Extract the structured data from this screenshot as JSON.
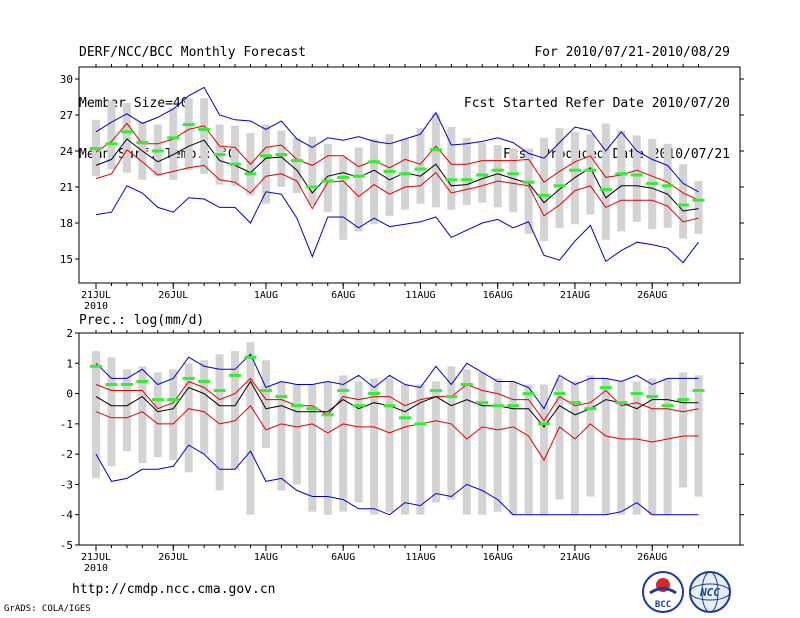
{
  "header": {
    "left_lines": [
      "DERF/NCC/BCC Monthly Forecast",
      "Member Size=40",
      "Mean Surf. Temp.: °C"
    ],
    "right_lines": [
      "For 2010/07/21-2010/08/29",
      "Fcst Started Refer Date 2010/07/20",
      "Fcst Produced Date 2010/07/21"
    ]
  },
  "footer": {
    "url": "http://cmdp.ncc.cma.gov.cn",
    "credit": "GrADS: COLA/IGES"
  },
  "logos": {
    "bcc": "BCC",
    "ncc": "NCC"
  },
  "chart_data": [
    {
      "type": "box-ensemble",
      "title": "Mean Surf. Temp.: °C",
      "ylim": [
        13,
        31
      ],
      "yticks": [
        15,
        18,
        21,
        24,
        27,
        30
      ],
      "xlabel": "",
      "ylabel": "",
      "xticks": [
        {
          "day": 0,
          "label": "21JUL"
        },
        {
          "day": 5,
          "label": "26JUL"
        },
        {
          "day": 11,
          "label": "1AUG"
        },
        {
          "day": 16,
          "label": "6AUG"
        },
        {
          "day": 21,
          "label": "11AUG"
        },
        {
          "day": 26,
          "label": "16AUG"
        },
        {
          "day": 31,
          "label": "21AUG"
        },
        {
          "day": 36,
          "label": "26AUG"
        }
      ],
      "year_label": "2010",
      "series": {
        "box_low": [
          21.9,
          22.5,
          22.2,
          21.6,
          21.9,
          21.6,
          22.4,
          22.1,
          21.2,
          21.1,
          20.3,
          19.6,
          21.0,
          20.5,
          19.5,
          18.9,
          16.6,
          17.3,
          17.9,
          18.6,
          19.1,
          19.6,
          19.3,
          19.1,
          19.5,
          19.7,
          19.3,
          18.9,
          17.1,
          16.5,
          17.6,
          17.9,
          18.7,
          16.6,
          17.3,
          18.1,
          17.5,
          17.6,
          16.7,
          17.1
        ],
        "box_high": [
          26.6,
          28.2,
          28.0,
          26.4,
          26.2,
          27.6,
          28.4,
          28.4,
          26.2,
          26.1,
          25.5,
          26.2,
          25.7,
          25.1,
          25.2,
          24.6,
          23.5,
          24.3,
          25.0,
          25.4,
          25.0,
          25.9,
          27.1,
          26.0,
          25.1,
          24.7,
          24.5,
          24.2,
          24.2,
          25.1,
          25.9,
          25.6,
          25.4,
          26.3,
          25.7,
          25.3,
          25.0,
          24.6,
          22.9,
          21.5
        ],
        "max": [
          25.6,
          26.4,
          27.1,
          26.3,
          26.8,
          27.5,
          28.6,
          29.3,
          27.0,
          26.6,
          26.5,
          25.8,
          26.5,
          25.0,
          24.3,
          25.1,
          24.9,
          25.2,
          24.8,
          24.6,
          25.0,
          25.4,
          27.2,
          24.5,
          24.6,
          24.8,
          25.1,
          24.7,
          23.8,
          23.4,
          24.7,
          26.0,
          25.7,
          24.0,
          25.6,
          24.0,
          23.3,
          22.8,
          21.3,
          20.6
        ],
        "min": [
          18.7,
          18.9,
          21.1,
          20.5,
          19.3,
          18.9,
          20.1,
          20.0,
          19.3,
          19.3,
          18.0,
          20.6,
          20.4,
          18.4,
          15.2,
          18.5,
          18.5,
          17.6,
          18.4,
          17.7,
          17.9,
          18.1,
          18.5,
          16.8,
          17.4,
          18.0,
          18.3,
          17.6,
          18.1,
          15.3,
          14.9,
          16.5,
          17.8,
          14.8,
          15.7,
          16.4,
          16.2,
          15.9,
          14.7,
          16.4
        ],
        "p90": [
          23.9,
          24.8,
          26.3,
          24.6,
          24.6,
          25.0,
          25.8,
          26.1,
          24.4,
          24.3,
          22.9,
          24.3,
          24.5,
          23.3,
          22.8,
          23.6,
          23.6,
          22.7,
          23.2,
          22.6,
          23.3,
          22.9,
          24.4,
          22.9,
          22.9,
          23.2,
          23.2,
          23.2,
          23.3,
          21.4,
          22.3,
          23.1,
          23.6,
          21.8,
          22.0,
          22.4,
          21.9,
          21.4,
          20.5,
          19.9
        ],
        "p10": [
          21.7,
          22.1,
          24.1,
          23.1,
          22.0,
          22.3,
          22.6,
          22.8,
          21.6,
          21.4,
          20.5,
          21.9,
          22.1,
          21.5,
          19.2,
          21.4,
          21.5,
          20.2,
          21.2,
          20.4,
          21.0,
          21.1,
          22.2,
          20.5,
          20.8,
          21.1,
          21.5,
          21.3,
          21.1,
          18.6,
          19.5,
          20.7,
          21.1,
          19.3,
          19.9,
          19.9,
          19.9,
          19.4,
          18.1,
          18.4
        ],
        "median": [
          22.8,
          23.3,
          25.0,
          24.0,
          23.1,
          23.7,
          24.4,
          24.9,
          23.2,
          22.8,
          22.2,
          23.4,
          23.5,
          22.4,
          20.5,
          21.9,
          22.2,
          21.8,
          22.4,
          21.6,
          22.2,
          21.9,
          22.9,
          21.1,
          21.2,
          21.7,
          22.1,
          21.7,
          21.3,
          19.7,
          20.8,
          21.8,
          22.6,
          20.1,
          21.1,
          21.1,
          20.9,
          20.4,
          19.0,
          19.2
        ],
        "green": [
          24.2,
          24.6,
          25.6,
          24.7,
          24.0,
          25.1,
          26.2,
          25.8,
          23.7,
          22.9,
          22.1,
          23.6,
          23.7,
          23.2,
          21.0,
          21.5,
          21.8,
          21.9,
          23.1,
          22.3,
          22.1,
          22.5,
          24.1,
          21.6,
          21.6,
          22.0,
          22.4,
          22.1,
          21.4,
          20.3,
          21.1,
          22.4,
          22.4,
          20.8,
          22.1,
          22.0,
          21.3,
          21.1,
          19.5,
          19.9
        ]
      }
    },
    {
      "type": "box-ensemble",
      "title": "Prec.: log(mm/d)",
      "ylim": [
        -5,
        2
      ],
      "yticks": [
        -5,
        -4,
        -3,
        -2,
        -1,
        0,
        1,
        2
      ],
      "xlabel": "",
      "ylabel": "",
      "xticks": [
        {
          "day": 0,
          "label": "21JUL"
        },
        {
          "day": 5,
          "label": "26JUL"
        },
        {
          "day": 11,
          "label": "1AUG"
        },
        {
          "day": 16,
          "label": "6AUG"
        },
        {
          "day": 21,
          "label": "11AUG"
        },
        {
          "day": 26,
          "label": "16AUG"
        },
        {
          "day": 31,
          "label": "21AUG"
        },
        {
          "day": 36,
          "label": "26AUG"
        }
      ],
      "year_label": "2010",
      "series": {
        "box_low": [
          -2.8,
          -2.4,
          -1.9,
          -2.3,
          -2.1,
          -2.2,
          -2.6,
          -2.0,
          -3.2,
          -2.5,
          -4.0,
          -1.8,
          -3.2,
          -3.0,
          -3.9,
          -4.0,
          -3.9,
          -3.6,
          -4.0,
          -3.9,
          -4.0,
          -4.0,
          -3.6,
          -3.5,
          -4.0,
          -4.0,
          -3.9,
          -4.0,
          -4.0,
          -4.0,
          -3.5,
          -4.0,
          -3.4,
          -4.0,
          -4.0,
          -4.0,
          -4.0,
          -4.0,
          -3.1,
          -3.4
        ],
        "box_high": [
          1.4,
          1.2,
          0.8,
          0.9,
          0.7,
          0.8,
          1.0,
          1.1,
          1.3,
          1.4,
          1.7,
          1.1,
          0.4,
          0.3,
          0.3,
          0.4,
          0.6,
          0.4,
          0.5,
          0.5,
          0.3,
          0.3,
          0.4,
          0.9,
          0.8,
          0.7,
          0.5,
          0.4,
          0.3,
          0.3,
          0.5,
          0.4,
          0.6,
          0.5,
          0.4,
          0.4,
          0.5,
          0.5,
          0.7,
          0.6
        ],
        "max": [
          1.0,
          0.5,
          0.5,
          0.8,
          0.3,
          0.5,
          1.2,
          0.9,
          0.8,
          0.8,
          1.3,
          0.2,
          0.4,
          0.3,
          0.3,
          0.4,
          0.3,
          0.6,
          0.2,
          0.6,
          0.3,
          0.2,
          0.9,
          0.3,
          1.0,
          0.7,
          0.4,
          0.4,
          0.2,
          -0.5,
          0.6,
          0.3,
          0.5,
          0.5,
          0.4,
          0.6,
          0.3,
          0.5,
          0.5,
          0.5
        ],
        "min": [
          -2.0,
          -2.9,
          -2.8,
          -2.5,
          -2.5,
          -2.4,
          -1.7,
          -2.0,
          -2.5,
          -2.5,
          -1.9,
          -2.9,
          -2.8,
          -3.2,
          -3.4,
          -3.4,
          -3.5,
          -3.8,
          -3.8,
          -4.0,
          -3.6,
          -3.7,
          -3.3,
          -3.4,
          -3.0,
          -3.2,
          -3.5,
          -4.0,
          -4.0,
          -4.0,
          -4.0,
          -4.0,
          -4.0,
          -4.0,
          -3.9,
          -3.6,
          -4.0,
          -4.0,
          -4.0,
          -4.0
        ],
        "p90": [
          0.3,
          0.1,
          0.1,
          0.1,
          -0.5,
          -0.3,
          0.4,
          0.2,
          -0.2,
          0.0,
          0.5,
          -0.2,
          -0.2,
          -0.4,
          -0.4,
          -0.7,
          -0.1,
          -0.2,
          -0.1,
          -0.1,
          -0.4,
          -0.2,
          -0.1,
          -0.1,
          0.3,
          0.1,
          0.0,
          -0.2,
          -0.2,
          -0.9,
          -0.1,
          -0.4,
          -0.3,
          0.1,
          -0.4,
          -0.3,
          -0.5,
          -0.5,
          -0.6,
          -0.5
        ],
        "p10": [
          -0.6,
          -0.8,
          -0.8,
          -0.6,
          -1.0,
          -1.0,
          -0.5,
          -0.6,
          -1.0,
          -0.9,
          -0.4,
          -1.2,
          -1.0,
          -1.1,
          -1.0,
          -1.3,
          -1.0,
          -1.1,
          -1.1,
          -1.3,
          -1.1,
          -1.0,
          -0.9,
          -1.0,
          -1.5,
          -1.1,
          -1.2,
          -1.1,
          -1.4,
          -2.2,
          -1.1,
          -1.5,
          -1.0,
          -1.4,
          -1.5,
          -1.5,
          -1.6,
          -1.5,
          -1.4,
          -1.4
        ],
        "median": [
          -0.1,
          -0.4,
          -0.4,
          -0.1,
          -0.6,
          -0.5,
          0.2,
          0.0,
          -0.4,
          -0.4,
          0.4,
          -0.5,
          -0.4,
          -0.6,
          -0.6,
          -0.6,
          -0.2,
          -0.5,
          -0.3,
          -0.4,
          -0.6,
          -0.3,
          -0.1,
          -0.4,
          -0.2,
          -0.4,
          -0.4,
          -0.5,
          -0.5,
          -1.1,
          -0.4,
          -0.7,
          -0.5,
          -0.2,
          -0.3,
          -0.5,
          -0.2,
          -0.2,
          -0.3,
          -0.3
        ],
        "green": [
          0.9,
          0.3,
          0.3,
          0.4,
          -0.2,
          -0.2,
          0.5,
          0.4,
          0.1,
          0.6,
          1.2,
          0.1,
          -0.1,
          -0.4,
          -0.5,
          -0.7,
          0.1,
          -0.4,
          0.0,
          -0.4,
          -0.8,
          -1.0,
          0.1,
          -0.1,
          0.3,
          -0.3,
          -0.4,
          -0.4,
          0.0,
          -1.0,
          0.0,
          -0.3,
          -0.5,
          0.2,
          -0.3,
          0.0,
          -0.1,
          -0.4,
          -0.2,
          0.1
        ]
      }
    }
  ]
}
